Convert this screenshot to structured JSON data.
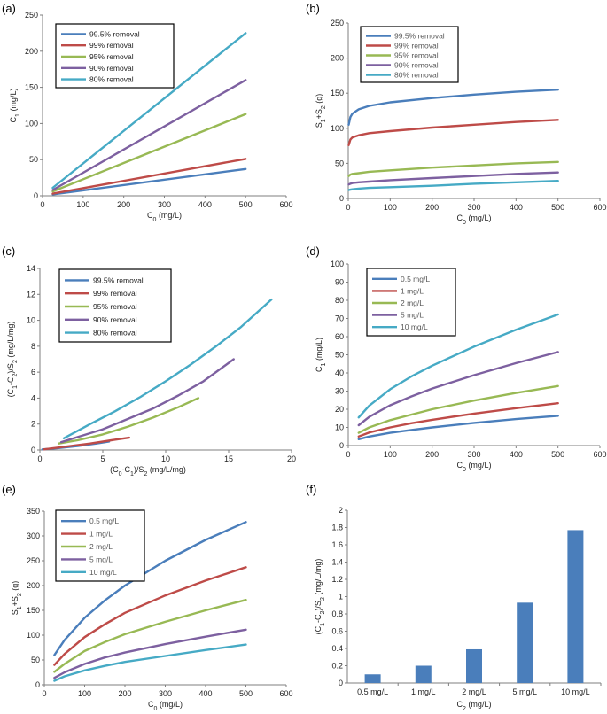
{
  "chart_data": [
    {
      "id": "a",
      "type": "line",
      "panel_label": "(a)",
      "xlabel_main": "C",
      "xlabel_sub": "0",
      "xlabel_unit": " (mg/L)",
      "ylabel_main": "C",
      "ylabel_sub": "1",
      "ylabel_unit": " (mg/L)",
      "xlim": [
        0,
        600
      ],
      "ylim": [
        0,
        250
      ],
      "xticks": [
        0,
        100,
        200,
        300,
        400,
        500,
        600
      ],
      "yticks": [
        0,
        50,
        100,
        150,
        200,
        250
      ],
      "legend": "top-left",
      "legend_grey": false,
      "series": [
        {
          "name": "99.5% removal",
          "color": "#4a7ebb",
          "x": [
            25,
            500
          ],
          "y": [
            2,
            37
          ]
        },
        {
          "name": "99% removal",
          "color": "#be4b48",
          "x": [
            25,
            500
          ],
          "y": [
            3,
            51
          ]
        },
        {
          "name": "95% removal",
          "color": "#98b954",
          "x": [
            25,
            500
          ],
          "y": [
            6,
            113
          ]
        },
        {
          "name": "90% removal",
          "color": "#7d60a0",
          "x": [
            25,
            500
          ],
          "y": [
            8,
            160
          ]
        },
        {
          "name": "80% removal",
          "color": "#46aac5",
          "x": [
            25,
            500
          ],
          "y": [
            11,
            225
          ]
        }
      ]
    },
    {
      "id": "b",
      "type": "line",
      "panel_label": "(b)",
      "xlabel_main": "C",
      "xlabel_sub": "0",
      "xlabel_unit": " (mg/L)",
      "ylabel_main": "S",
      "ylabel_sub": "1",
      "ylabel_mid": "+S",
      "ylabel_sub2": "2",
      "ylabel_unit": " (g)",
      "xlim": [
        0,
        600
      ],
      "ylim": [
        0,
        250
      ],
      "xticks": [
        0,
        100,
        200,
        300,
        400,
        500,
        600
      ],
      "yticks": [
        0,
        50,
        100,
        150,
        200,
        250
      ],
      "legend": "top-left",
      "legend_grey": true,
      "series": [
        {
          "name": "99.5% removal",
          "color": "#4a7ebb",
          "x": [
            1,
            5,
            10,
            25,
            50,
            100,
            200,
            300,
            400,
            500
          ],
          "y": [
            105,
            116,
            121,
            127,
            132,
            137,
            143,
            148,
            152,
            155
          ]
        },
        {
          "name": "99% removal",
          "color": "#be4b48",
          "x": [
            1,
            5,
            10,
            25,
            50,
            100,
            200,
            300,
            400,
            500
          ],
          "y": [
            76,
            84,
            87,
            90,
            93,
            96,
            101,
            105,
            109,
            112
          ]
        },
        {
          "name": "95% removal",
          "color": "#98b954",
          "x": [
            1,
            5,
            10,
            25,
            50,
            100,
            200,
            300,
            400,
            500
          ],
          "y": [
            32,
            34,
            35,
            36,
            38,
            40,
            44,
            47,
            50,
            52
          ]
        },
        {
          "name": "90% removal",
          "color": "#7d60a0",
          "x": [
            1,
            5,
            10,
            25,
            50,
            100,
            200,
            300,
            400,
            500
          ],
          "y": [
            20,
            21,
            22,
            23,
            24,
            26,
            29,
            32,
            35,
            37
          ]
        },
        {
          "name": "80% removal",
          "color": "#46aac5",
          "x": [
            1,
            5,
            10,
            25,
            50,
            100,
            200,
            300,
            400,
            500
          ],
          "y": [
            12,
            12.5,
            13,
            14,
            15,
            16,
            18,
            21,
            23,
            25
          ]
        }
      ]
    },
    {
      "id": "c",
      "type": "line",
      "panel_label": "(c)",
      "xlabel_main": "(C",
      "xlabel_sub": "0",
      "xlabel_mid": "-C",
      "xlabel_sub2": "1",
      "xlabel_mid2": ")/S",
      "xlabel_sub3": "2",
      "xlabel_unit": " (mg/L/mg)",
      "ylabel_main": "(C",
      "ylabel_sub": "1",
      "ylabel_mid": "-C",
      "ylabel_sub2": "2",
      "ylabel_mid2": ")/S",
      "ylabel_sub3": "2",
      "ylabel_unit": " (mg/L/mg)",
      "xlim": [
        0,
        20
      ],
      "ylim": [
        0,
        14
      ],
      "xticks": [
        0,
        5,
        10,
        15,
        20
      ],
      "yticks": [
        0,
        2,
        4,
        6,
        8,
        10,
        12,
        14
      ],
      "legend": "top-left",
      "legend_grey": false,
      "series": [
        {
          "name": "99.5% removal",
          "color": "#4a7ebb",
          "x": [
            0.2,
            1.5,
            3,
            4.5,
            5.5
          ],
          "y": [
            0.05,
            0.15,
            0.3,
            0.5,
            0.65
          ]
        },
        {
          "name": "99% removal",
          "color": "#be4b48",
          "x": [
            0.3,
            2,
            4,
            6,
            7.1
          ],
          "y": [
            0.05,
            0.25,
            0.5,
            0.8,
            0.95
          ]
        },
        {
          "name": "95% removal",
          "color": "#98b954",
          "x": [
            1.5,
            3,
            5,
            7,
            9,
            11,
            12.6
          ],
          "y": [
            0.5,
            0.75,
            1.2,
            1.8,
            2.5,
            3.3,
            4.0
          ]
        },
        {
          "name": "90% removal",
          "color": "#7d60a0",
          "x": [
            1.7,
            3,
            5,
            7,
            9,
            11,
            13,
            15.4
          ],
          "y": [
            0.6,
            1.0,
            1.6,
            2.4,
            3.2,
            4.2,
            5.3,
            7.0
          ]
        },
        {
          "name": "80% removal",
          "color": "#46aac5",
          "x": [
            1.9,
            4,
            6,
            8,
            10,
            12,
            14,
            16,
            18.4
          ],
          "y": [
            0.9,
            2.0,
            3.0,
            4.1,
            5.3,
            6.6,
            8.0,
            9.5,
            11.6
          ]
        }
      ]
    },
    {
      "id": "d",
      "type": "line",
      "panel_label": "(d)",
      "xlabel_main": "C",
      "xlabel_sub": "0",
      "xlabel_unit": " (mg/L)",
      "ylabel_main": "C",
      "ylabel_sub": "1",
      "ylabel_unit": " (mg/L)",
      "xlim": [
        0,
        600
      ],
      "ylim": [
        0,
        100
      ],
      "xticks": [
        0,
        100,
        200,
        300,
        400,
        500,
        600
      ],
      "yticks": [
        0,
        10,
        20,
        30,
        40,
        50,
        60,
        70,
        80,
        90,
        100
      ],
      "legend": "top-left",
      "legend_grey": true,
      "series": [
        {
          "name": "0.5 mg/L",
          "color": "#4a7ebb",
          "x": [
            25,
            50,
            100,
            150,
            200,
            300,
            400,
            500
          ],
          "y": [
            3.5,
            5,
            7,
            8.6,
            10,
            12.5,
            14.6,
            16.4
          ]
        },
        {
          "name": "1 mg/L",
          "color": "#be4b48",
          "x": [
            25,
            50,
            100,
            150,
            200,
            300,
            400,
            500
          ],
          "y": [
            5,
            7.2,
            10,
            12.3,
            14.2,
            17.6,
            20.6,
            23.3
          ]
        },
        {
          "name": "2 mg/L",
          "color": "#98b954",
          "x": [
            25,
            50,
            100,
            150,
            200,
            300,
            400,
            500
          ],
          "y": [
            7,
            10,
            14,
            17,
            20,
            24.8,
            29,
            32.8
          ]
        },
        {
          "name": "5 mg/L",
          "color": "#7d60a0",
          "x": [
            25,
            50,
            100,
            150,
            200,
            300,
            400,
            500
          ],
          "y": [
            11.2,
            15.8,
            22.2,
            27,
            31.4,
            38.8,
            45.4,
            51.5
          ]
        },
        {
          "name": "10 mg/L",
          "color": "#46aac5",
          "x": [
            25,
            50,
            100,
            150,
            200,
            300,
            400,
            500
          ],
          "y": [
            15.5,
            22,
            31,
            38,
            44,
            54.5,
            63.8,
            72.2
          ]
        }
      ]
    },
    {
      "id": "e",
      "type": "line",
      "panel_label": "(e)",
      "xlabel_main": "C",
      "xlabel_sub": "0",
      "xlabel_unit": " (mg/L)",
      "ylabel_main": "S",
      "ylabel_sub": "1",
      "ylabel_mid": "+S",
      "ylabel_sub2": "2",
      "ylabel_unit": " (g)",
      "xlim": [
        0,
        600
      ],
      "ylim": [
        0,
        350
      ],
      "xticks": [
        0,
        100,
        200,
        300,
        400,
        500,
        600
      ],
      "yticks": [
        0,
        50,
        100,
        150,
        200,
        250,
        300,
        350
      ],
      "legend": "top-left",
      "legend_grey": true,
      "series": [
        {
          "name": "0.5 mg/L",
          "color": "#4a7ebb",
          "x": [
            25,
            50,
            100,
            150,
            200,
            300,
            400,
            500
          ],
          "y": [
            60,
            90,
            135,
            170,
            200,
            250,
            292,
            328
          ]
        },
        {
          "name": "1 mg/L",
          "color": "#be4b48",
          "x": [
            25,
            50,
            100,
            150,
            200,
            300,
            400,
            500
          ],
          "y": [
            40,
            62,
            96,
            122,
            145,
            180,
            210,
            237
          ]
        },
        {
          "name": "2 mg/L",
          "color": "#98b954",
          "x": [
            25,
            50,
            100,
            150,
            200,
            300,
            400,
            500
          ],
          "y": [
            26,
            42,
            68,
            86,
            102,
            127,
            150,
            171
          ]
        },
        {
          "name": "5 mg/L",
          "color": "#7d60a0",
          "x": [
            25,
            50,
            100,
            150,
            200,
            300,
            400,
            500
          ],
          "y": [
            14,
            25,
            42,
            55,
            65,
            82,
            97,
            111
          ]
        },
        {
          "name": "10 mg/L",
          "color": "#46aac5",
          "x": [
            25,
            50,
            100,
            150,
            200,
            300,
            400,
            500
          ],
          "y": [
            8,
            17,
            29,
            38,
            46,
            58,
            70,
            81
          ]
        }
      ]
    },
    {
      "id": "f",
      "type": "bar",
      "panel_label": "(f)",
      "xlabel_main": "C",
      "xlabel_sub": "2",
      "xlabel_unit": " (mg/L)",
      "ylabel_main": "(C",
      "ylabel_sub": "1",
      "ylabel_mid": "-C",
      "ylabel_sub2": "2",
      "ylabel_mid2": ")/S",
      "ylabel_sub3": "2",
      "ylabel_unit": " (mg/L/mg)",
      "ylim": [
        0,
        2
      ],
      "yticks": [
        "0",
        "0.2",
        "0.4",
        "0.6",
        "0.8",
        "1",
        "1.2",
        "1.4",
        "1.6",
        "1.8",
        "2"
      ],
      "categories": [
        "0.5 mg/L",
        "1 mg/L",
        "2 mg/L",
        "5 mg/L",
        "10 mg/L"
      ],
      "values": [
        0.1,
        0.2,
        0.39,
        0.93,
        1.77
      ],
      "color": "#4a7ebb"
    }
  ]
}
